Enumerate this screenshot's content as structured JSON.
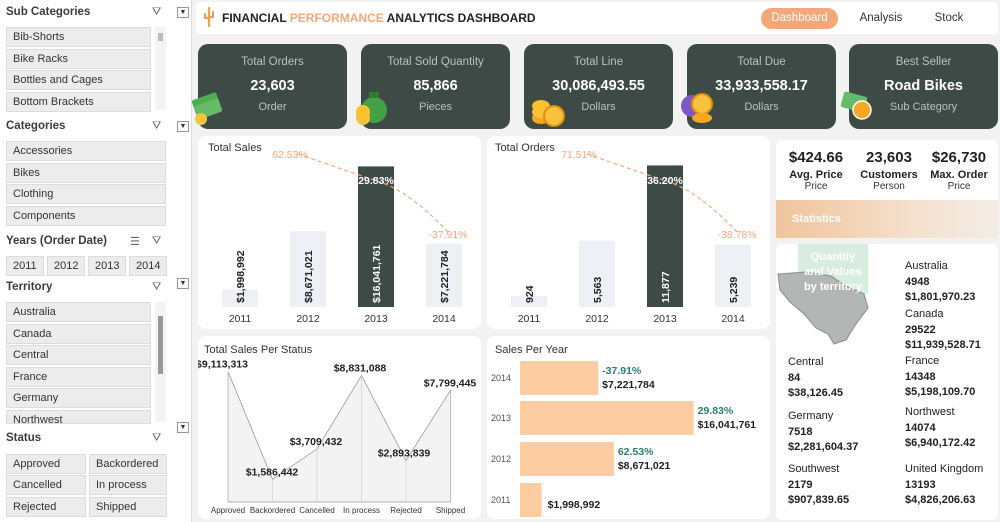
{
  "colors": {
    "dark": "#3d4a46",
    "accent": "#f4a77a",
    "bar_light": "#eef0f5",
    "bar_orange": "#fdcda1",
    "teal": "#2e7d6e"
  },
  "sidebar": {
    "subcategories": {
      "title": "Sub Categories",
      "items": [
        "Bib-Shorts",
        "Bike Racks",
        "Bottles and Cages",
        "Bottom Brackets"
      ]
    },
    "categories": {
      "title": "Categories",
      "items": [
        "Accessories",
        "Bikes",
        "Clothing",
        "Components"
      ]
    },
    "years": {
      "title": "Years (Order Date)",
      "items": [
        "2011",
        "2012",
        "2013",
        "2014"
      ]
    },
    "territory": {
      "title": "Territory",
      "items": [
        "Australia",
        "Canada",
        "Central",
        "France",
        "Germany",
        "Northwest"
      ]
    },
    "status": {
      "title": "Status",
      "items": [
        "Approved",
        "Backordered",
        "Cancelled",
        "In process",
        "Rejected",
        "Shipped"
      ]
    }
  },
  "header": {
    "title_part1": "FINANCIAL ",
    "title_part2": "PERFORMANCE",
    "title_part3": " ANALYTICS DASHBOARD",
    "nav": [
      "Dashboard",
      "Analysis",
      "Stock"
    ]
  },
  "kpis": [
    {
      "title": "Total Orders",
      "value": "23,603",
      "unit": "Order",
      "icon": "money-stack-icon"
    },
    {
      "title": "Total Sold Quantity",
      "value": "85,866",
      "unit": "Pieces",
      "icon": "money-bag-icon"
    },
    {
      "title": "Total Line",
      "value": "30,086,493.55",
      "unit": "Dollars",
      "icon": "coins-icon"
    },
    {
      "title": "Total Due",
      "value": "33,933,558.17",
      "unit": "Dollars",
      "icon": "coin-stack-icon"
    },
    {
      "title": "Best Seller",
      "value": "Road Bikes",
      "unit": "Sub Category",
      "icon": "cash-icon"
    }
  ],
  "total_sales": {
    "title": "Total Sales",
    "labels": [
      "$1,998,992",
      "$8,671,021",
      "$16,041,761",
      "$7,221,784"
    ],
    "growth": [
      "62.53%",
      "29.83%",
      "-37.91%"
    ]
  },
  "total_orders": {
    "title": "Total Orders",
    "labels": [
      "924",
      "5,563",
      "11,877",
      "5,239"
    ],
    "growth": [
      "71.51%",
      "36.20%",
      "-38.78%"
    ]
  },
  "status_chart": {
    "title": "Total Sales Per Status",
    "labels": [
      "$9,113,313",
      "$1,586,442",
      "$3,709,432",
      "$8,831,088",
      "$2,893,839",
      "$7,799,445"
    ]
  },
  "sales_year": {
    "title": "Sales Per Year",
    "rows": [
      {
        "year": "2014",
        "pct": "-37.91%",
        "value": "$7,221,784"
      },
      {
        "year": "2013",
        "pct": "29.83%",
        "value": "$16,041,761"
      },
      {
        "year": "2012",
        "pct": "62.53%",
        "value": "$8,671,021"
      },
      {
        "year": "2011",
        "pct": "",
        "value": "$1,998,992"
      }
    ]
  },
  "stats": {
    "items": [
      {
        "value": "$424.66",
        "label": "Avg. Price",
        "sub": "Price"
      },
      {
        "value": "23,603",
        "label": "Customers",
        "sub": "Person"
      },
      {
        "value": "$26,730",
        "label": "Max. Order",
        "sub": "Price"
      }
    ],
    "banner": "Statistics"
  },
  "territory_panel": {
    "map_label": [
      "Quantity",
      "and Values",
      "by territory"
    ],
    "items": [
      {
        "name": "Australia",
        "qty": "4948",
        "val": "$1,801,970.23"
      },
      {
        "name": "Canada",
        "qty": "29522",
        "val": "$11,939,528.71"
      },
      {
        "name": "Central",
        "qty": "84",
        "val": "$38,126.45"
      },
      {
        "name": "France",
        "qty": "14348",
        "val": "$5,198,109.70"
      },
      {
        "name": "Germany",
        "qty": "7518",
        "val": "$2,281,604.37"
      },
      {
        "name": "Northwest",
        "qty": "14074",
        "val": "$6,940,172.42"
      },
      {
        "name": "Southwest",
        "qty": "2179",
        "val": "$907,839.65"
      },
      {
        "name": "United Kingdom",
        "qty": "13193",
        "val": "$4,826,206.63"
      }
    ]
  },
  "chart_data": [
    {
      "type": "bar",
      "title": "Total Sales",
      "categories": [
        "2011",
        "2012",
        "2013",
        "2014"
      ],
      "values": [
        1998992,
        8671021,
        16041761,
        7221784
      ],
      "growth": [
        null,
        62.53,
        29.83,
        -37.91
      ],
      "ylim": [
        0,
        17000000
      ]
    },
    {
      "type": "bar",
      "title": "Total Orders",
      "categories": [
        "2011",
        "2012",
        "2013",
        "2014"
      ],
      "values": [
        924,
        5563,
        11877,
        5239
      ],
      "growth": [
        null,
        71.51,
        36.2,
        -38.78
      ],
      "ylim": [
        0,
        12500
      ]
    },
    {
      "type": "area",
      "title": "Total Sales Per Status",
      "categories": [
        "Approved",
        "Backordered",
        "Cancelled",
        "In process",
        "Rejected",
        "Shipped"
      ],
      "values": [
        9113313,
        1586442,
        3709432,
        8831088,
        2893839,
        7799445
      ],
      "ylim": [
        0,
        9500000
      ]
    },
    {
      "type": "bar",
      "title": "Sales Per Year",
      "orientation": "horizontal",
      "categories": [
        "2014",
        "2013",
        "2012",
        "2011"
      ],
      "values": [
        7221784,
        16041761,
        8671021,
        1998992
      ],
      "growth": [
        -37.91,
        29.83,
        62.53,
        null
      ],
      "xlim": [
        0,
        17000000
      ]
    }
  ]
}
